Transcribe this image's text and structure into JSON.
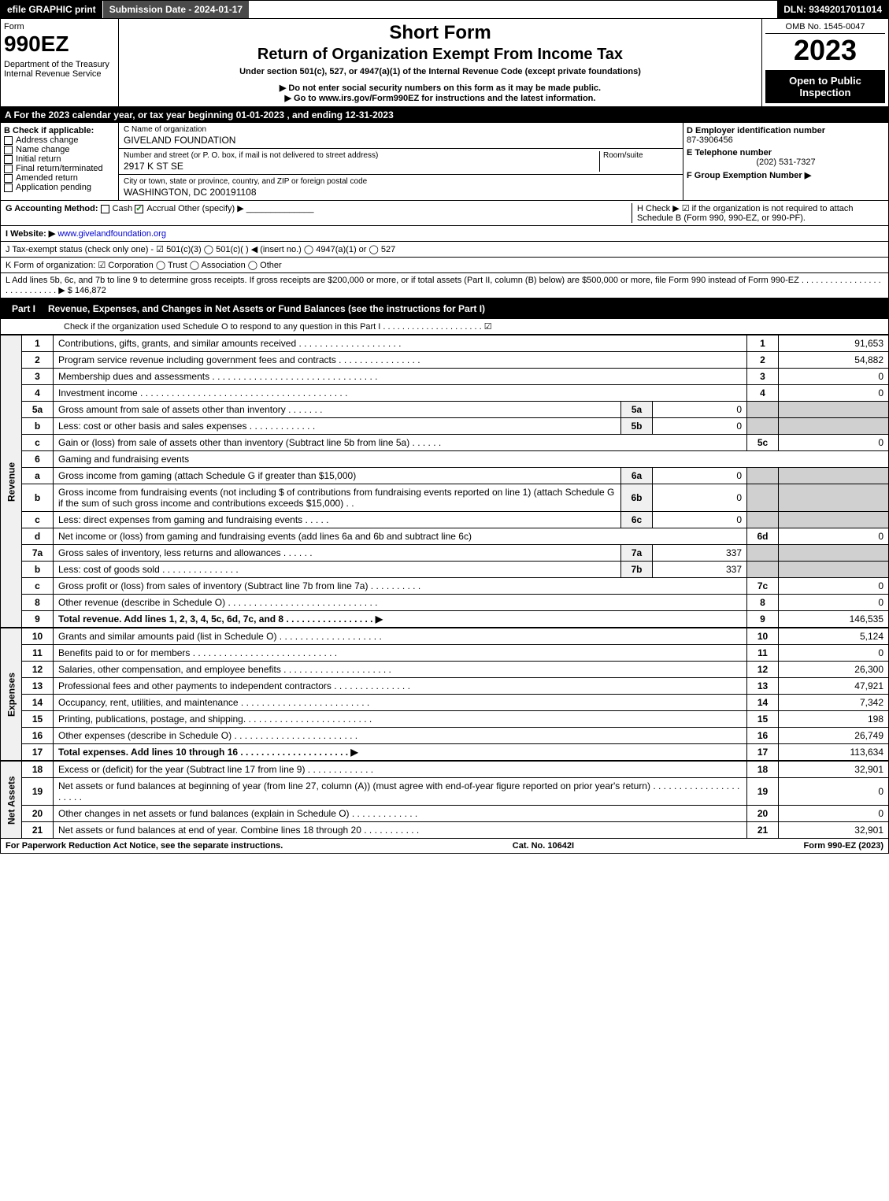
{
  "topbar": {
    "efile": "efile GRAPHIC print",
    "submission": "Submission Date - 2024-01-17",
    "dln": "DLN: 93492017011014"
  },
  "header": {
    "form_label": "Form",
    "form_num": "990EZ",
    "dept": "Department of the Treasury\nInternal Revenue Service",
    "short_form": "Short Form",
    "title": "Return of Organization Exempt From Income Tax",
    "subtitle": "Under section 501(c), 527, or 4947(a)(1) of the Internal Revenue Code (except private foundations)",
    "note1": "▶ Do not enter social security numbers on this form as it may be made public.",
    "note2": "▶ Go to www.irs.gov/Form990EZ for instructions and the latest information.",
    "omb": "OMB No. 1545-0047",
    "year": "2023",
    "open": "Open to Public Inspection"
  },
  "section_a": "A  For the 2023 calendar year, or tax year beginning 01-01-2023 , and ending 12-31-2023",
  "box_b": {
    "title": "B  Check if applicable:",
    "items": [
      "Address change",
      "Name change",
      "Initial return",
      "Final return/terminated",
      "Amended return",
      "Application pending"
    ]
  },
  "box_c": {
    "name_label": "C Name of organization",
    "name": "GIVELAND FOUNDATION",
    "street_label": "Number and street (or P. O. box, if mail is not delivered to street address)",
    "street": "2917 K ST SE",
    "room_label": "Room/suite",
    "city_label": "City or town, state or province, country, and ZIP or foreign postal code",
    "city": "WASHINGTON, DC  200191108"
  },
  "box_d": {
    "ein_label": "D Employer identification number",
    "ein": "87-3906456",
    "phone_label": "E Telephone number",
    "phone": "(202) 531-7327",
    "group_label": "F Group Exemption Number  ▶"
  },
  "line_g": {
    "label": "G Accounting Method:",
    "cash": "Cash",
    "accrual": "Accrual",
    "other": "Other (specify) ▶"
  },
  "line_h": "H  Check ▶ ☑ if the organization is not required to attach Schedule B (Form 990, 990-EZ, or 990-PF).",
  "line_i": {
    "label": "I Website: ▶",
    "value": "www.givelandfoundation.org"
  },
  "line_j": "J Tax-exempt status (check only one) - ☑ 501(c)(3)  ◯ 501(c)(  ) ◀ (insert no.)  ◯ 4947(a)(1) or  ◯ 527",
  "line_k": "K Form of organization:  ☑ Corporation  ◯ Trust  ◯ Association  ◯ Other",
  "line_l": {
    "text": "L Add lines 5b, 6c, and 7b to line 9 to determine gross receipts. If gross receipts are $200,000 or more, or if total assets (Part II, column (B) below) are $500,000 or more, file Form 990 instead of Form 990-EZ . . . . . . . . . . . . . . . . . . . . . . . . . . . . ▶ $",
    "amount": "146,872"
  },
  "part1": {
    "label": "Part I",
    "title": "Revenue, Expenses, and Changes in Net Assets or Fund Balances (see the instructions for Part I)",
    "check_text": "Check if the organization used Schedule O to respond to any question in this Part I . . . . . . . . . . . . . . . . . . . . . ☑"
  },
  "sidebar": {
    "revenue": "Revenue",
    "expenses": "Expenses",
    "netassets": "Net Assets"
  },
  "rows": [
    {
      "n": "1",
      "desc": "Contributions, gifts, grants, and similar amounts received . . . . . . . . . . . . . . . . . . . .",
      "rn": "1",
      "amt": "91,653"
    },
    {
      "n": "2",
      "desc": "Program service revenue including government fees and contracts . . . . . . . . . . . . . . . .",
      "rn": "2",
      "amt": "54,882"
    },
    {
      "n": "3",
      "desc": "Membership dues and assessments . . . . . . . . . . . . . . . . . . . . . . . . . . . . . . . .",
      "rn": "3",
      "amt": "0"
    },
    {
      "n": "4",
      "desc": "Investment income . . . . . . . . . . . . . . . . . . . . . . . . . . . . . . . . . . . . . . . .",
      "rn": "4",
      "amt": "0"
    },
    {
      "n": "5a",
      "desc": "Gross amount from sale of assets other than inventory . . . . . . .",
      "mn": "5a",
      "mamt": "0"
    },
    {
      "n": "b",
      "desc": "Less: cost or other basis and sales expenses . . . . . . . . . . . . .",
      "mn": "5b",
      "mamt": "0"
    },
    {
      "n": "c",
      "desc": "Gain or (loss) from sale of assets other than inventory (Subtract line 5b from line 5a) . . . . . .",
      "rn": "5c",
      "amt": "0"
    },
    {
      "n": "6",
      "desc": "Gaming and fundraising events"
    },
    {
      "n": "a",
      "desc": "Gross income from gaming (attach Schedule G if greater than $15,000)",
      "mn": "6a",
      "mamt": "0"
    },
    {
      "n": "b",
      "desc": "Gross income from fundraising events (not including $                  of contributions from fundraising events reported on line 1) (attach Schedule G if the sum of such gross income and contributions exceeds $15,000)   . .",
      "mn": "6b",
      "mamt": "0"
    },
    {
      "n": "c",
      "desc": "Less: direct expenses from gaming and fundraising events   . . . . .",
      "mn": "6c",
      "mamt": "0"
    },
    {
      "n": "d",
      "desc": "Net income or (loss) from gaming and fundraising events (add lines 6a and 6b and subtract line 6c)",
      "rn": "6d",
      "amt": "0"
    },
    {
      "n": "7a",
      "desc": "Gross sales of inventory, less returns and allowances . . . . . .",
      "mn": "7a",
      "mamt": "337"
    },
    {
      "n": "b",
      "desc": "Less: cost of goods sold     . . . . . . . . . . . . . . .",
      "mn": "7b",
      "mamt": "337"
    },
    {
      "n": "c",
      "desc": "Gross profit or (loss) from sales of inventory (Subtract line 7b from line 7a) . . . . . . . . . .",
      "rn": "7c",
      "amt": "0"
    },
    {
      "n": "8",
      "desc": "Other revenue (describe in Schedule O) . . . . . . . . . . . . . . . . . . . . . . . . . . . . .",
      "rn": "8",
      "amt": "0"
    },
    {
      "n": "9",
      "desc": "Total revenue. Add lines 1, 2, 3, 4, 5c, 6d, 7c, and 8  . . . . . . . . . . . . . . . . .  ▶",
      "rn": "9",
      "amt": "146,535",
      "bold": true
    }
  ],
  "expense_rows": [
    {
      "n": "10",
      "desc": "Grants and similar amounts paid (list in Schedule O) . . . . . . . . . . . . . . . . . . . .",
      "rn": "10",
      "amt": "5,124"
    },
    {
      "n": "11",
      "desc": "Benefits paid to or for members    . . . . . . . . . . . . . . . . . . . . . . . . . . . .",
      "rn": "11",
      "amt": "0"
    },
    {
      "n": "12",
      "desc": "Salaries, other compensation, and employee benefits . . . . . . . . . . . . . . . . . . . . .",
      "rn": "12",
      "amt": "26,300"
    },
    {
      "n": "13",
      "desc": "Professional fees and other payments to independent contractors . . . . . . . . . . . . . . .",
      "rn": "13",
      "amt": "47,921"
    },
    {
      "n": "14",
      "desc": "Occupancy, rent, utilities, and maintenance . . . . . . . . . . . . . . . . . . . . . . . . .",
      "rn": "14",
      "amt": "7,342"
    },
    {
      "n": "15",
      "desc": "Printing, publications, postage, and shipping. . . . . . . . . . . . . . . . . . . . . . . . .",
      "rn": "15",
      "amt": "198"
    },
    {
      "n": "16",
      "desc": "Other expenses (describe in Schedule O)    . . . . . . . . . . . . . . . . . . . . . . . .",
      "rn": "16",
      "amt": "26,749"
    },
    {
      "n": "17",
      "desc": "Total expenses. Add lines 10 through 16    . . . . . . . . . . . . . . . . . . . . .  ▶",
      "rn": "17",
      "amt": "113,634",
      "bold": true
    }
  ],
  "net_rows": [
    {
      "n": "18",
      "desc": "Excess or (deficit) for the year (Subtract line 17 from line 9)     . . . . . . . . . . . . .",
      "rn": "18",
      "amt": "32,901"
    },
    {
      "n": "19",
      "desc": "Net assets or fund balances at beginning of year (from line 27, column (A)) (must agree with end-of-year figure reported on prior year's return) . . . . . . . . . . . . . . . . . . . . . .",
      "rn": "19",
      "amt": "0"
    },
    {
      "n": "20",
      "desc": "Other changes in net assets or fund balances (explain in Schedule O) . . . . . . . . . . . . .",
      "rn": "20",
      "amt": "0"
    },
    {
      "n": "21",
      "desc": "Net assets or fund balances at end of year. Combine lines 18 through 20 . . . . . . . . . . .",
      "rn": "21",
      "amt": "32,901"
    }
  ],
  "footer": {
    "left": "For Paperwork Reduction Act Notice, see the separate instructions.",
    "mid": "Cat. No. 10642I",
    "right": "Form 990-EZ (2023)"
  }
}
